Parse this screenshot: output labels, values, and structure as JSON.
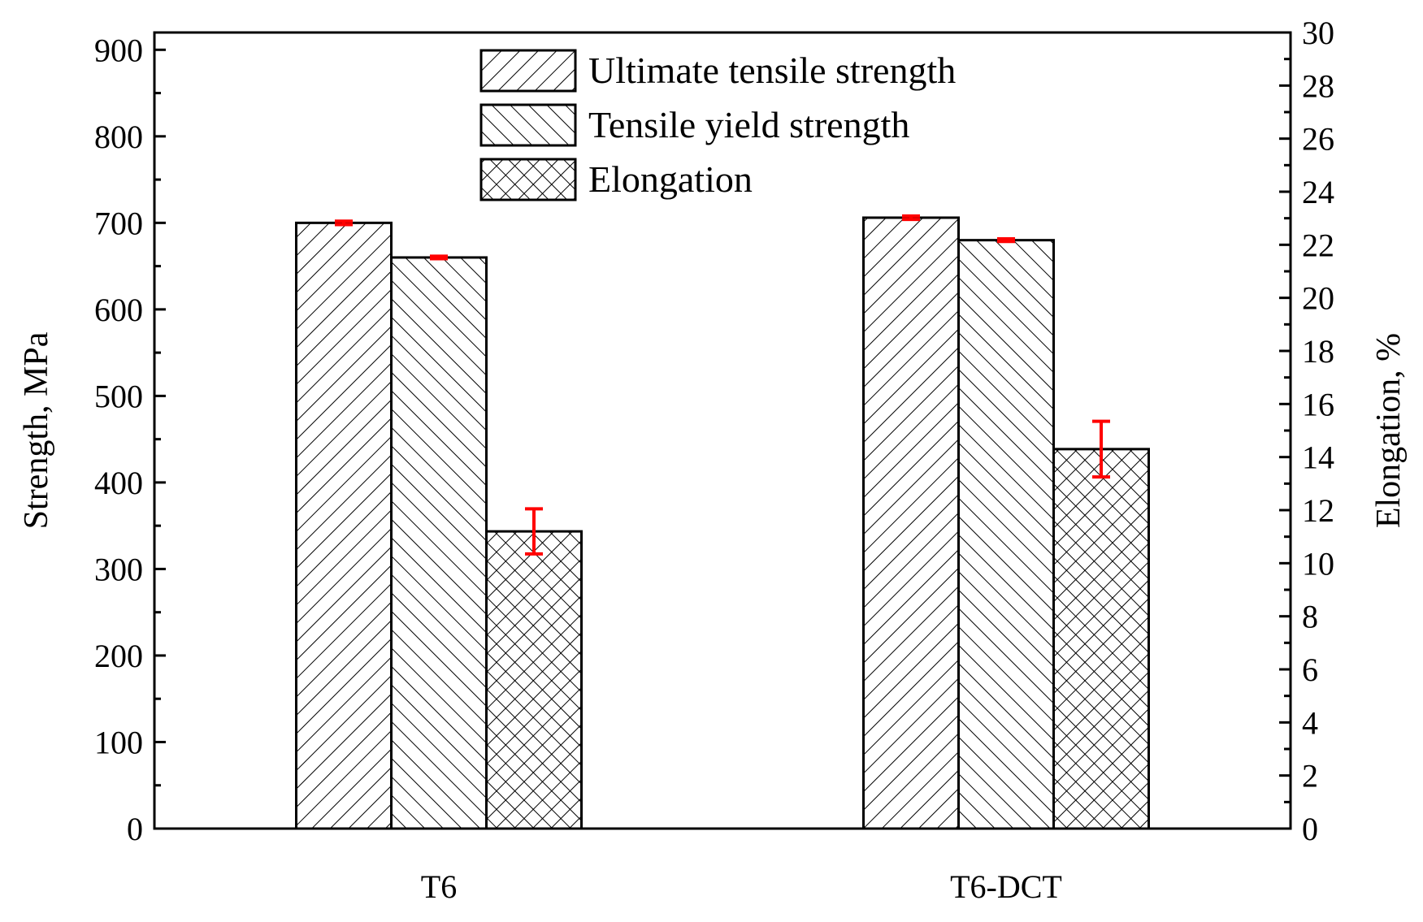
{
  "chart_data": {
    "type": "bar",
    "categories": [
      "T6",
      "T6-DCT"
    ],
    "series": [
      {
        "name": "Ultimate tensile strength",
        "axis": "left",
        "pattern": "back-diagonal",
        "values": [
          700,
          706
        ],
        "errors": [
          2,
          2
        ]
      },
      {
        "name": "Tensile yield strength",
        "axis": "left",
        "pattern": "forward-diagonal",
        "values": [
          660,
          680
        ],
        "errors": [
          1.5,
          1.5
        ]
      },
      {
        "name": "Elongation",
        "axis": "right",
        "pattern": "crosshatch",
        "values": [
          11.2,
          14.3
        ],
        "errors": [
          0.85,
          1.05
        ]
      }
    ],
    "ylabel": "Strength, MPa",
    "y2label": "Elongation, %",
    "xlabel": "",
    "ylim": [
      0,
      920
    ],
    "y2lim": [
      0,
      30
    ],
    "yticks": [
      0,
      100,
      200,
      300,
      400,
      500,
      600,
      700,
      800,
      900
    ],
    "y2ticks": [
      0,
      2,
      4,
      6,
      8,
      10,
      12,
      14,
      16,
      18,
      20,
      22,
      24,
      26,
      28,
      30
    ],
    "legend_position": "top-center",
    "error_bar_color": "#ff0000",
    "bar_fill_color": "#ffffff",
    "line_color": "#000000"
  }
}
